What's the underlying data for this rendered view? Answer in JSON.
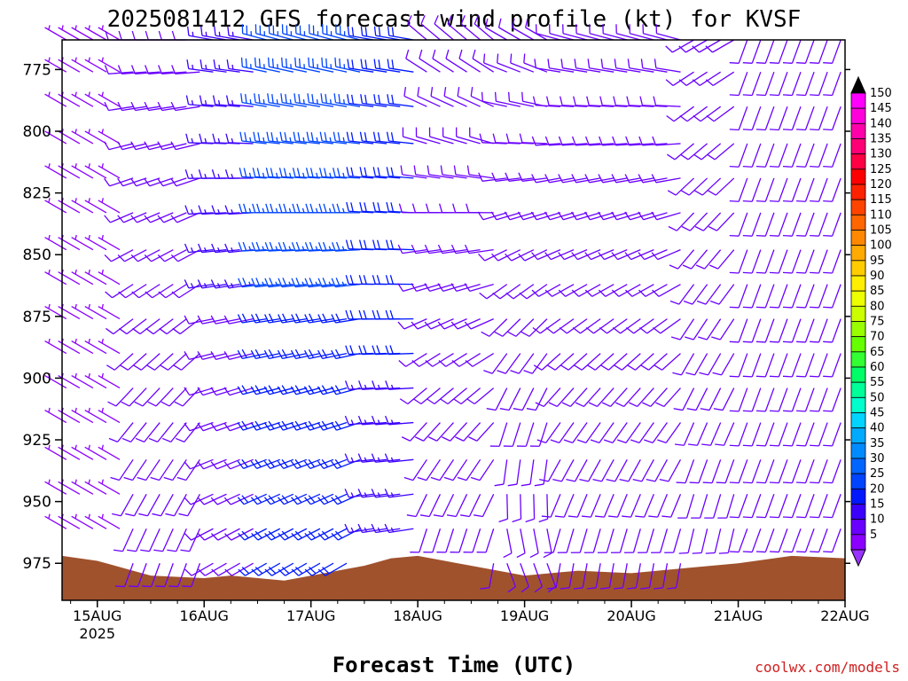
{
  "chart_data": {
    "type": "wind-barb-profile",
    "title": "2025081412 GFS forecast wind profile (kt) for KVSF",
    "xlabel": "Forecast Time (UTC)",
    "credit": "coolwx.com/models",
    "y_scale": "pressure (hPa), increasing downward",
    "ylim": [
      763,
      990
    ],
    "y_ticks": [
      775,
      800,
      825,
      850,
      875,
      900,
      925,
      950,
      975
    ],
    "x_unit": "days since 2025-08-15 00Z",
    "xlim": [
      -0.33,
      7.0
    ],
    "x_ticks": [
      {
        "value": 0,
        "label": "15AUG",
        "sublabel": "2025"
      },
      {
        "value": 1,
        "label": "16AUG",
        "sublabel": ""
      },
      {
        "value": 2,
        "label": "17AUG",
        "sublabel": ""
      },
      {
        "value": 3,
        "label": "18AUG",
        "sublabel": ""
      },
      {
        "value": 4,
        "label": "19AUG",
        "sublabel": ""
      },
      {
        "value": 5,
        "label": "20AUG",
        "sublabel": ""
      },
      {
        "value": 6,
        "label": "21AUG",
        "sublabel": ""
      },
      {
        "value": 7,
        "label": "22AUG",
        "sublabel": ""
      }
    ],
    "barb_levels": [
      763,
      776,
      790,
      805,
      819,
      833,
      848,
      862,
      876,
      890,
      904,
      918,
      933,
      947,
      961,
      975
    ],
    "time_step_hours": 6,
    "wind_regimes": [
      {
        "from": -0.33,
        "to": 0.25,
        "upper_dir": 300,
        "upper_speed": 6,
        "lower_dir": 300,
        "lower_speed": 5
      },
      {
        "from": 0.25,
        "to": 1.0,
        "upper_dir": 270,
        "upper_speed": 12,
        "lower_dir": 200,
        "lower_speed": 10
      },
      {
        "from": 1.0,
        "to": 1.5,
        "upper_dir": 280,
        "upper_speed": 15,
        "lower_dir": 240,
        "lower_speed": 10
      },
      {
        "from": 1.5,
        "to": 2.5,
        "upper_dir": 285,
        "upper_speed": 25,
        "lower_dir": 240,
        "lower_speed": 20
      },
      {
        "from": 2.5,
        "to": 3.0,
        "upper_dir": 280,
        "upper_speed": 22,
        "lower_dir": 260,
        "lower_speed": 15
      },
      {
        "from": 3.0,
        "to": 3.75,
        "upper_dir": 310,
        "upper_speed": 12,
        "lower_dir": 190,
        "lower_speed": 12
      },
      {
        "from": 3.75,
        "to": 4.25,
        "upper_dir": 300,
        "upper_speed": 10,
        "lower_dir": 160,
        "lower_speed": 8
      },
      {
        "from": 4.25,
        "to": 5.5,
        "upper_dir": 285,
        "upper_speed": 12,
        "lower_dir": 190,
        "lower_speed": 10
      },
      {
        "from": 5.5,
        "to": 6.0,
        "upper_dir": 240,
        "upper_speed": 10,
        "lower_dir": 190,
        "lower_speed": 10
      },
      {
        "from": 6.0,
        "to": 7.0,
        "upper_dir": 200,
        "upper_speed": 8,
        "lower_dir": 200,
        "lower_speed": 8
      }
    ],
    "terrain": {
      "color": "#a0522d",
      "x": [
        -0.33,
        0.0,
        0.5,
        1.0,
        1.25,
        1.75,
        2.25,
        2.5,
        2.75,
        3.0,
        3.5,
        4.0,
        4.5,
        5.0,
        5.5,
        6.0,
        6.5,
        7.0
      ],
      "top_pressure": [
        972,
        974,
        980,
        981,
        980,
        982,
        978,
        976,
        973,
        972,
        976,
        980,
        978,
        979,
        977,
        975,
        972,
        973
      ]
    },
    "colorbar": {
      "values": [
        5,
        10,
        15,
        20,
        25,
        30,
        35,
        40,
        45,
        50,
        55,
        60,
        65,
        70,
        75,
        80,
        85,
        90,
        95,
        100,
        105,
        110,
        115,
        120,
        125,
        130,
        135,
        140,
        145,
        150
      ],
      "colors": [
        "#8b00ff",
        "#6a00ff",
        "#3c00ff",
        "#0018ff",
        "#0044ff",
        "#0066ff",
        "#008cff",
        "#00aaff",
        "#00d4ff",
        "#00ffcc",
        "#00ff99",
        "#00ff66",
        "#33ff33",
        "#66ff00",
        "#99ff00",
        "#ccff00",
        "#eeff00",
        "#ffee00",
        "#ffcc00",
        "#ffaa00",
        "#ff8800",
        "#ff6600",
        "#ff4400",
        "#ff2200",
        "#ff0000",
        "#ff0044",
        "#ff0077",
        "#ff00aa",
        "#ff00dd",
        "#ff00ff"
      ],
      "arrow_low_color": "#9933ff",
      "arrow_high_color": "#000000"
    }
  }
}
